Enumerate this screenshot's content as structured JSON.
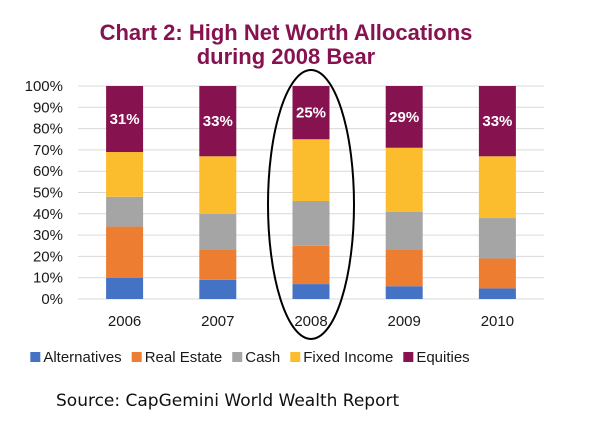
{
  "chart_data": {
    "type": "bar",
    "stacked": true,
    "title": "Chart 2: High Net Worth Allocations",
    "subtitle": "during 2008 Bear",
    "title_color": "#86134F",
    "xlabel": "",
    "ylabel": "",
    "categories": [
      "2006",
      "2007",
      "2008",
      "2009",
      "2010"
    ],
    "ylim": [
      0,
      100
    ],
    "y_ticks": [
      "0%",
      "10%",
      "20%",
      "30%",
      "40%",
      "50%",
      "60%",
      "70%",
      "80%",
      "90%",
      "100%"
    ],
    "grid": true,
    "legend_position": "bottom",
    "series": [
      {
        "name": "Alternatives",
        "color": "#4472C4",
        "values": [
          10,
          9,
          7,
          6,
          5
        ]
      },
      {
        "name": "Real Estate",
        "color": "#ED7D31",
        "values": [
          24,
          14,
          18,
          17,
          14
        ]
      },
      {
        "name": "Cash",
        "color": "#A5A5A5",
        "values": [
          14,
          17,
          21,
          18,
          19
        ]
      },
      {
        "name": "Fixed Income",
        "color": "#FBBC2E",
        "values": [
          21,
          27,
          29,
          30,
          29
        ]
      },
      {
        "name": "Equities",
        "color": "#86134F",
        "values": [
          31,
          33,
          25,
          29,
          33
        ]
      }
    ],
    "data_labels": {
      "series": "Equities",
      "labels": [
        "31%",
        "33%",
        "25%",
        "29%",
        "33%"
      ]
    },
    "annotations": [
      {
        "type": "ellipse",
        "highlights_category": "2008"
      }
    ],
    "source": "Source: CapGemini World Wealth Report"
  }
}
